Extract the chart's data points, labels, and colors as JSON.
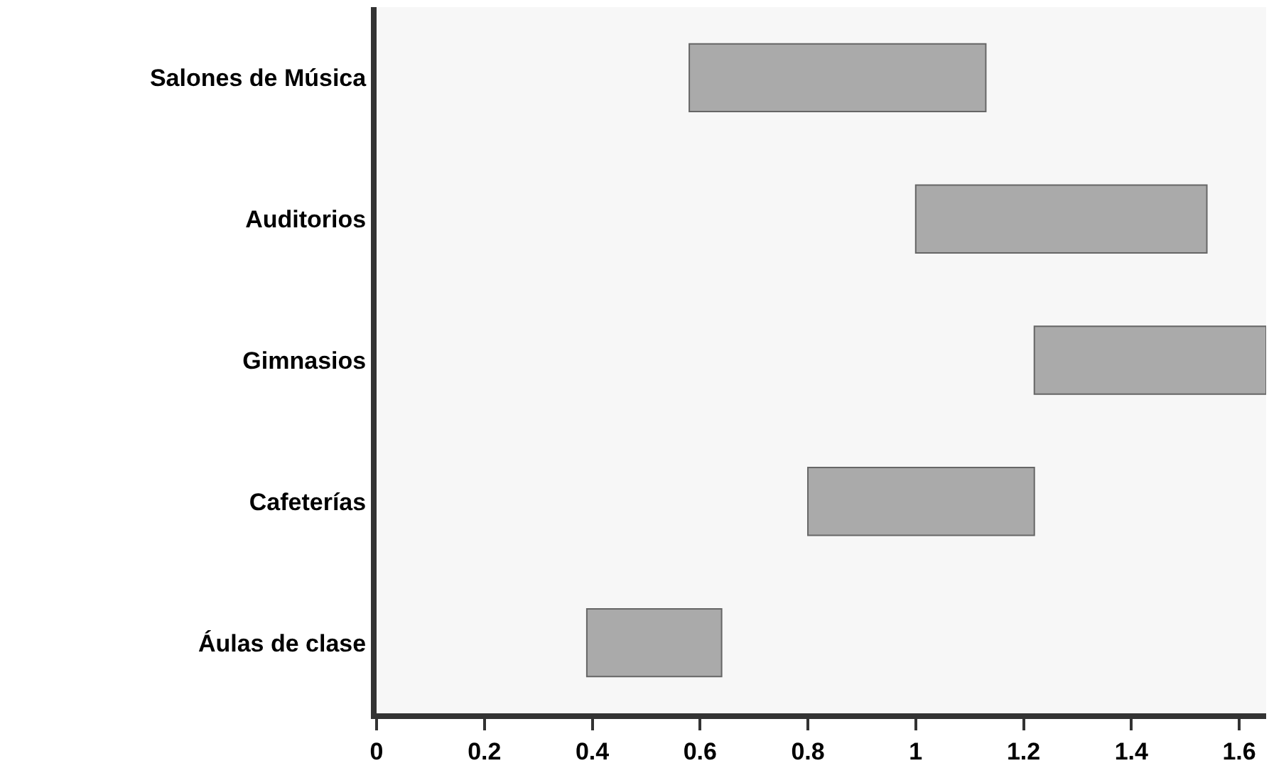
{
  "chart_data": {
    "type": "bar",
    "orientation": "horizontal",
    "categories": [
      "Salones de Música",
      "Auditorios",
      "Gimnasios",
      "Cafeterías",
      "Áulas de clase"
    ],
    "base": [
      0.58,
      1.0,
      1.22,
      0.8,
      0.39
    ],
    "values": [
      0.55,
      0.54,
      0.43,
      0.42,
      0.25
    ],
    "color": "#aaaaaa",
    "xlim": [
      0,
      1.65
    ],
    "xticks": [
      0,
      0.2,
      0.4,
      0.6,
      0.8,
      1,
      1.2,
      1.4,
      1.6
    ],
    "grid": false,
    "legend": false
  }
}
